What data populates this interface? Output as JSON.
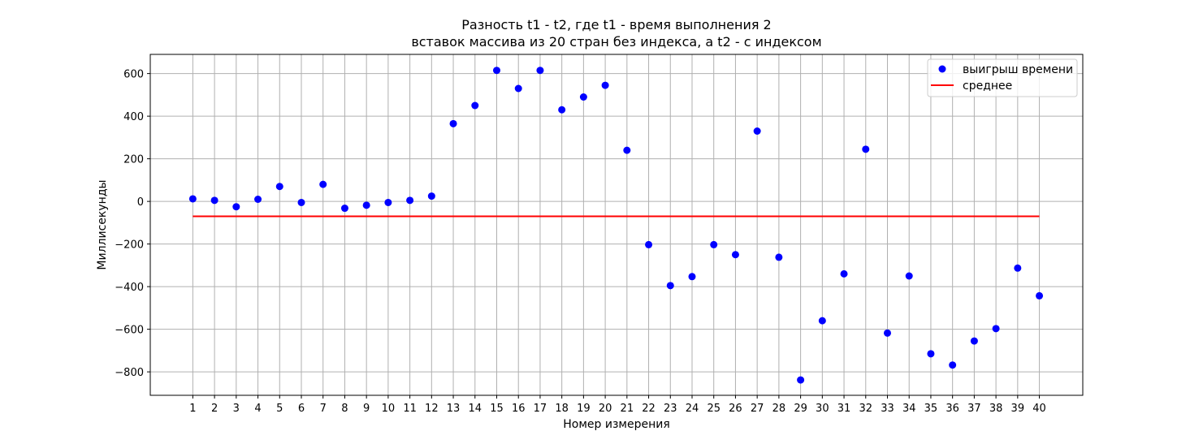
{
  "chart_data": {
    "type": "scatter",
    "title": [
      "Разность t1 - t2, где t1 - время выполнения 2",
      "вставок массива из 20 стран без индекса, а t2 - с индексом"
    ],
    "xlabel": "Номер измерения",
    "ylabel": "Миллисекунды",
    "x": [
      1,
      2,
      3,
      4,
      5,
      6,
      7,
      8,
      9,
      10,
      11,
      12,
      13,
      14,
      15,
      16,
      17,
      18,
      19,
      20,
      21,
      22,
      23,
      24,
      25,
      26,
      27,
      28,
      29,
      30,
      31,
      32,
      33,
      34,
      35,
      36,
      37,
      38,
      39,
      40
    ],
    "xticks": [
      "1",
      "2",
      "3",
      "4",
      "5",
      "6",
      "7",
      "8",
      "9",
      "10",
      "11",
      "12",
      "13",
      "14",
      "15",
      "16",
      "17",
      "18",
      "19",
      "20",
      "21",
      "22",
      "23",
      "24",
      "25",
      "26",
      "27",
      "28",
      "29",
      "30",
      "31",
      "32",
      "33",
      "34",
      "35",
      "36",
      "37",
      "38",
      "39",
      "40"
    ],
    "xlim": [
      -0.96,
      42.0
    ],
    "ylim": [
      -910,
      690
    ],
    "yticks": [
      600,
      400,
      200,
      0,
      -200,
      -400,
      -600,
      -800
    ],
    "ytick_labels": [
      "600",
      "400",
      "200",
      "0",
      "−200",
      "−400",
      "−600",
      "−800"
    ],
    "grid": true,
    "series": [
      {
        "name": "выигрыш времени",
        "kind": "scatter",
        "color": "#0000ff",
        "values": [
          12,
          5,
          -25,
          10,
          70,
          -5,
          80,
          -32,
          -18,
          -5,
          5,
          25,
          365,
          450,
          615,
          530,
          615,
          430,
          490,
          545,
          240,
          -203,
          -395,
          -353,
          -203,
          -250,
          330,
          -262,
          -838,
          -560,
          -340,
          245,
          -618,
          -350,
          -715,
          -768,
          -655,
          -597,
          -313,
          -443
        ]
      },
      {
        "name": "среднее",
        "kind": "line",
        "color": "#ff0000",
        "value": -70
      }
    ],
    "legend": {
      "position": "top-right",
      "items": [
        "выигрыш времени",
        "среднее"
      ]
    }
  }
}
